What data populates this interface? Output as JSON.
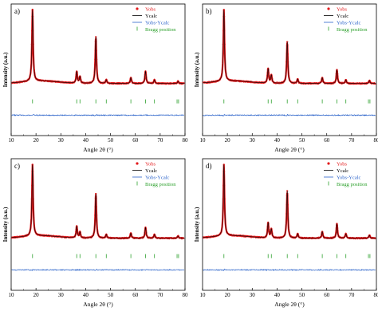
{
  "colors": {
    "yobs": "#e31a1c",
    "ycalc": "#000000",
    "diff": "#2a62c9",
    "bragg": "#2ca02c",
    "axis": "#000000"
  },
  "chart_data": [
    {
      "panel": "a)",
      "type": "line",
      "xlabel": "Angle 2θ (°)",
      "ylabel": "Intensity (a.u.)",
      "xlim": [
        10,
        80
      ],
      "xticks": [
        "10",
        "20",
        "30",
        "40",
        "50",
        "60",
        "70",
        "80"
      ],
      "legend": {
        "placement": "top-right",
        "entries": [
          "Yobs",
          "Ycalc",
          "Yobs-Ycalc",
          "Bragg position"
        ]
      },
      "peaks": [
        {
          "x": 18.6,
          "y": 1.0
        },
        {
          "x": 36.4,
          "y": 0.16
        },
        {
          "x": 37.7,
          "y": 0.09
        },
        {
          "x": 44.1,
          "y": 0.65
        },
        {
          "x": 48.3,
          "y": 0.05
        },
        {
          "x": 58.2,
          "y": 0.08
        },
        {
          "x": 64.1,
          "y": 0.17
        },
        {
          "x": 67.7,
          "y": 0.05
        },
        {
          "x": 77.2,
          "y": 0.03
        }
      ],
      "bragg_positions": [
        18.6,
        36.4,
        37.7,
        44.1,
        48.3,
        58.2,
        64.1,
        67.7,
        76.8,
        77.4
      ]
    },
    {
      "panel": "b)",
      "type": "line",
      "xlabel": "Angle 2θ (°)",
      "ylabel": "Intensity (a.u.)",
      "xlim": [
        10,
        80
      ],
      "xticks": [
        "10",
        "20",
        "30",
        "40",
        "50",
        "60",
        "70",
        "80"
      ],
      "legend": {
        "placement": "top-right",
        "entries": [
          "Yobs",
          "Ycalc",
          "Yobs-Ycalc",
          "Bragg position"
        ]
      },
      "peaks": [
        {
          "x": 18.6,
          "y": 1.0
        },
        {
          "x": 36.4,
          "y": 0.2
        },
        {
          "x": 37.7,
          "y": 0.11
        },
        {
          "x": 44.1,
          "y": 0.58
        },
        {
          "x": 48.3,
          "y": 0.06
        },
        {
          "x": 58.2,
          "y": 0.08
        },
        {
          "x": 64.1,
          "y": 0.19
        },
        {
          "x": 67.7,
          "y": 0.05
        },
        {
          "x": 77.2,
          "y": 0.04
        }
      ],
      "bragg_positions": [
        18.6,
        36.4,
        37.7,
        44.1,
        48.3,
        58.2,
        64.1,
        67.7,
        76.8,
        77.4
      ]
    },
    {
      "panel": "c)",
      "type": "line",
      "xlabel": "Angle 2θ (°)",
      "ylabel": "Intensity (a.u.)",
      "xlim": [
        10,
        80
      ],
      "xticks": [
        "10",
        "20",
        "30",
        "40",
        "50",
        "60",
        "70",
        "80"
      ],
      "legend": {
        "placement": "top-right",
        "entries": [
          "Yobs",
          "Ycalc",
          "Yobs-Ycalc",
          "Bragg position"
        ]
      },
      "peaks": [
        {
          "x": 18.6,
          "y": 1.0
        },
        {
          "x": 36.4,
          "y": 0.16
        },
        {
          "x": 37.7,
          "y": 0.08
        },
        {
          "x": 44.1,
          "y": 0.62
        },
        {
          "x": 48.3,
          "y": 0.05
        },
        {
          "x": 58.2,
          "y": 0.07
        },
        {
          "x": 64.1,
          "y": 0.15
        },
        {
          "x": 67.7,
          "y": 0.05
        },
        {
          "x": 77.2,
          "y": 0.03
        }
      ],
      "bragg_positions": [
        18.6,
        36.4,
        37.7,
        44.1,
        48.3,
        58.2,
        64.1,
        67.7,
        76.8,
        77.4
      ]
    },
    {
      "panel": "d)",
      "type": "line",
      "xlabel": "Angle 2θ (°)",
      "ylabel": "Intensity (a.u.)",
      "xlim": [
        10,
        80
      ],
      "xticks": [
        "10",
        "20",
        "30",
        "40",
        "50",
        "60",
        "70",
        "80"
      ],
      "legend": {
        "placement": "top-right",
        "entries": [
          "Yobs",
          "Ycalc",
          "Yobs-Ycalc",
          "Bragg position"
        ]
      },
      "peaks": [
        {
          "x": 18.6,
          "y": 1.0
        },
        {
          "x": 36.4,
          "y": 0.21
        },
        {
          "x": 37.7,
          "y": 0.12
        },
        {
          "x": 44.1,
          "y": 0.66
        },
        {
          "x": 48.3,
          "y": 0.06
        },
        {
          "x": 58.2,
          "y": 0.09
        },
        {
          "x": 64.1,
          "y": 0.2
        },
        {
          "x": 67.7,
          "y": 0.06
        },
        {
          "x": 77.2,
          "y": 0.04
        }
      ],
      "bragg_positions": [
        18.6,
        36.4,
        37.7,
        44.1,
        48.3,
        58.2,
        64.1,
        67.7,
        76.8,
        77.4
      ]
    }
  ]
}
